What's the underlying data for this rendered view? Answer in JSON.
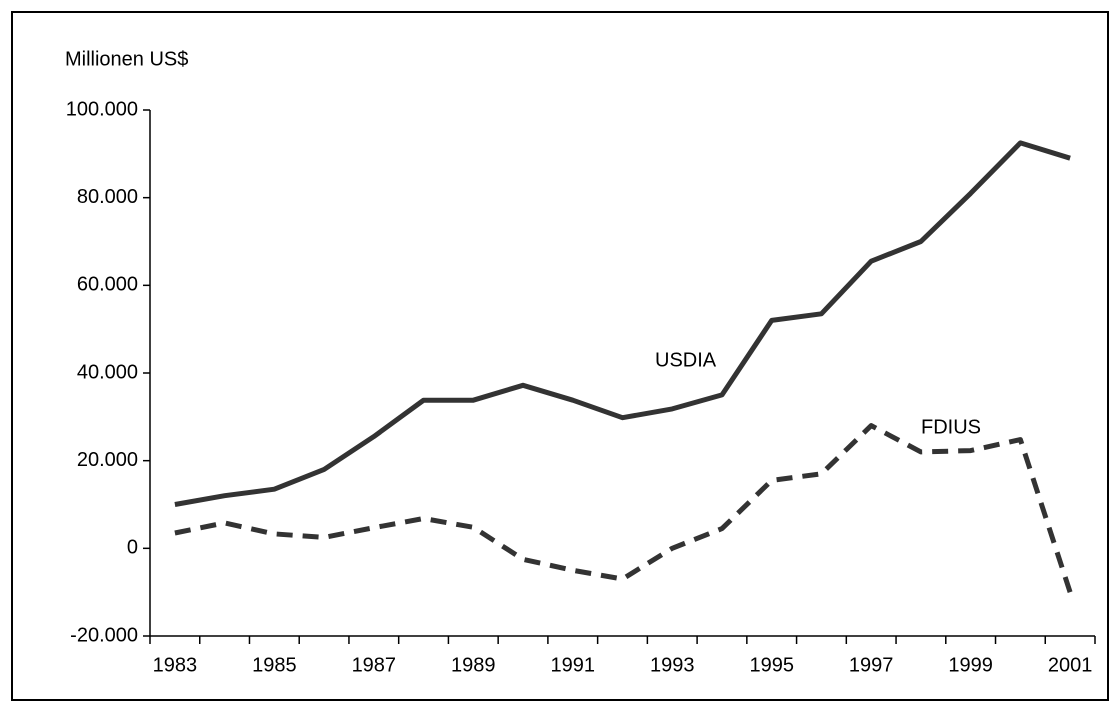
{
  "chart_data": {
    "type": "line",
    "y_axis_label": "Millionen US$",
    "annotations": [
      "USDIA",
      "FDIUS"
    ],
    "categories": [
      "1983",
      null,
      "1985",
      null,
      "1987",
      null,
      "1989",
      null,
      "1991",
      null,
      "1993",
      null,
      "1995",
      null,
      "1997",
      null,
      "1999",
      null,
      "2001"
    ],
    "series": [
      {
        "name": "USDIA",
        "color": "#333333",
        "style": "solid",
        "values": [
          10000,
          12000,
          13500,
          18000,
          25500,
          33800,
          33800,
          37200,
          33800,
          29800,
          31800,
          35000,
          52000,
          53500,
          65500,
          70000,
          81000,
          92500,
          89000
        ]
      },
      {
        "name": "FDIUS",
        "color": "#333333",
        "style": "dashed",
        "values": [
          3500,
          5800,
          3300,
          2500,
          4700,
          6800,
          4800,
          -2500,
          -5000,
          -7000,
          0,
          4500,
          15500,
          17000,
          28000,
          22000,
          22300,
          24800,
          -10000
        ]
      }
    ],
    "ylim": [
      -20000,
      100000
    ],
    "yticks": [
      {
        "value": -20000,
        "label": "-20.000"
      },
      0,
      {
        "value": 20000,
        "label": "20.000"
      },
      {
        "value": 40000,
        "label": "40.000"
      },
      {
        "value": 60000,
        "label": "60.000"
      },
      {
        "value": 80000,
        "label": "80.000"
      },
      {
        "value": 100000,
        "label": "100.000"
      }
    ]
  }
}
